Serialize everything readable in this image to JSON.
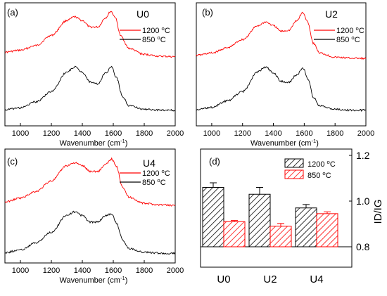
{
  "figure": {
    "background": "#ffffff"
  },
  "chart_data": [
    {
      "type": "line",
      "panel_label": "(a)",
      "sample_label": "U0",
      "xlabel": "Wavenumber (cm-1)",
      "xlim": [
        900,
        2000
      ],
      "xticks": [
        1000,
        1200,
        1400,
        1600,
        1800,
        2000
      ],
      "grid": false,
      "legend_position": "right",
      "series": [
        {
          "name": "1200 oC",
          "color": "#ff0000",
          "offset": "upper",
          "points": [
            [
              900,
              0.12
            ],
            [
              1000,
              0.16
            ],
            [
              1100,
              0.26
            ],
            [
              1200,
              0.48
            ],
            [
              1300,
              0.8
            ],
            [
              1350,
              0.88
            ],
            [
              1400,
              0.8
            ],
            [
              1450,
              0.66
            ],
            [
              1500,
              0.66
            ],
            [
              1550,
              0.86
            ],
            [
              1585,
              1.0
            ],
            [
              1610,
              0.88
            ],
            [
              1650,
              0.46
            ],
            [
              1700,
              0.2
            ],
            [
              1800,
              0.07
            ],
            [
              1900,
              0.03
            ],
            [
              2000,
              0.02
            ]
          ]
        },
        {
          "name": "850 oC",
          "color": "#000000",
          "offset": "lower",
          "points": [
            [
              900,
              0.03
            ],
            [
              1000,
              0.07
            ],
            [
              1100,
              0.2
            ],
            [
              1200,
              0.42
            ],
            [
              1300,
              0.84
            ],
            [
              1350,
              0.95
            ],
            [
              1400,
              0.84
            ],
            [
              1450,
              0.63
            ],
            [
              1500,
              0.58
            ],
            [
              1550,
              0.82
            ],
            [
              1590,
              0.95
            ],
            [
              1620,
              0.72
            ],
            [
              1660,
              0.32
            ],
            [
              1700,
              0.12
            ],
            [
              1800,
              0.04
            ],
            [
              1900,
              0.02
            ],
            [
              2000,
              0.02
            ]
          ]
        }
      ]
    },
    {
      "type": "line",
      "panel_label": "(b)",
      "sample_label": "U2",
      "xlabel": "Wavenumber (cm-1)",
      "xlim": [
        900,
        2000
      ],
      "xticks": [
        1000,
        1200,
        1400,
        1600,
        1800,
        2000
      ],
      "grid": false,
      "legend_position": "right",
      "series": [
        {
          "name": "1200 oC",
          "color": "#ff0000",
          "offset": "upper",
          "points": [
            [
              900,
              0.08
            ],
            [
              1000,
              0.13
            ],
            [
              1100,
              0.24
            ],
            [
              1200,
              0.42
            ],
            [
              1300,
              0.72
            ],
            [
              1350,
              0.8
            ],
            [
              1400,
              0.72
            ],
            [
              1450,
              0.6
            ],
            [
              1500,
              0.62
            ],
            [
              1550,
              0.82
            ],
            [
              1590,
              1.0
            ],
            [
              1620,
              0.82
            ],
            [
              1660,
              0.34
            ],
            [
              1700,
              0.13
            ],
            [
              1800,
              0.04
            ],
            [
              1900,
              0.02
            ],
            [
              2000,
              0.01
            ]
          ]
        },
        {
          "name": "850 oC",
          "color": "#000000",
          "offset": "lower",
          "points": [
            [
              900,
              0.03
            ],
            [
              1000,
              0.08
            ],
            [
              1100,
              0.22
            ],
            [
              1200,
              0.42
            ],
            [
              1300,
              0.85
            ],
            [
              1350,
              0.95
            ],
            [
              1400,
              0.82
            ],
            [
              1450,
              0.64
            ],
            [
              1500,
              0.62
            ],
            [
              1550,
              0.78
            ],
            [
              1595,
              0.92
            ],
            [
              1625,
              0.68
            ],
            [
              1660,
              0.3
            ],
            [
              1700,
              0.11
            ],
            [
              1800,
              0.04
            ],
            [
              1900,
              0.02
            ],
            [
              2000,
              0.02
            ]
          ]
        }
      ]
    },
    {
      "type": "line",
      "panel_label": "(c)",
      "sample_label": "U4",
      "xlabel": "Wavenumber (cm-1)",
      "xlim": [
        900,
        2000
      ],
      "xticks": [
        1000,
        1200,
        1400,
        1600,
        1800,
        2000
      ],
      "grid": false,
      "legend_position": "right",
      "series": [
        {
          "name": "1200 oC",
          "color": "#ff0000",
          "offset": "upper",
          "points": [
            [
              900,
              0.1
            ],
            [
              1000,
              0.18
            ],
            [
              1100,
              0.32
            ],
            [
              1200,
              0.54
            ],
            [
              1300,
              0.86
            ],
            [
              1350,
              0.92
            ],
            [
              1400,
              0.86
            ],
            [
              1450,
              0.74
            ],
            [
              1500,
              0.74
            ],
            [
              1550,
              0.88
            ],
            [
              1590,
              1.0
            ],
            [
              1620,
              0.84
            ],
            [
              1660,
              0.42
            ],
            [
              1700,
              0.2
            ],
            [
              1800,
              0.07
            ],
            [
              1900,
              0.04
            ],
            [
              2000,
              0.03
            ]
          ]
        },
        {
          "name": "850 oC",
          "color": "#000000",
          "offset": "lower",
          "points": [
            [
              900,
              0.04
            ],
            [
              1000,
              0.1
            ],
            [
              1100,
              0.25
            ],
            [
              1200,
              0.48
            ],
            [
              1300,
              0.85
            ],
            [
              1350,
              0.92
            ],
            [
              1400,
              0.84
            ],
            [
              1450,
              0.7
            ],
            [
              1500,
              0.7
            ],
            [
              1550,
              0.84
            ],
            [
              1590,
              0.88
            ],
            [
              1620,
              0.68
            ],
            [
              1660,
              0.32
            ],
            [
              1700,
              0.13
            ],
            [
              1800,
              0.05
            ],
            [
              1900,
              0.03
            ],
            [
              2000,
              0.02
            ]
          ]
        }
      ]
    },
    {
      "type": "bar",
      "panel_label": "(d)",
      "categories": [
        "U0",
        "U2",
        "U4"
      ],
      "ylabel": "ID/IG",
      "ylim": [
        0.8,
        1.2
      ],
      "yticks": [
        "0.8",
        "1.0",
        "1.2"
      ],
      "y_axis_side": "right",
      "grid": false,
      "legend_position": "top",
      "series": [
        {
          "name": "1200 oC",
          "color": "#000000",
          "pattern": "diagonal-hatch",
          "values": [
            1.06,
            1.03,
            0.97
          ],
          "errors": [
            0.02,
            0.03,
            0.015
          ]
        },
        {
          "name": "850 oC",
          "color": "#ff0000",
          "pattern": "diagonal-hatch",
          "values": [
            0.91,
            0.89,
            0.945
          ],
          "errors": [
            0.005,
            0.012,
            0.008
          ]
        }
      ]
    }
  ]
}
